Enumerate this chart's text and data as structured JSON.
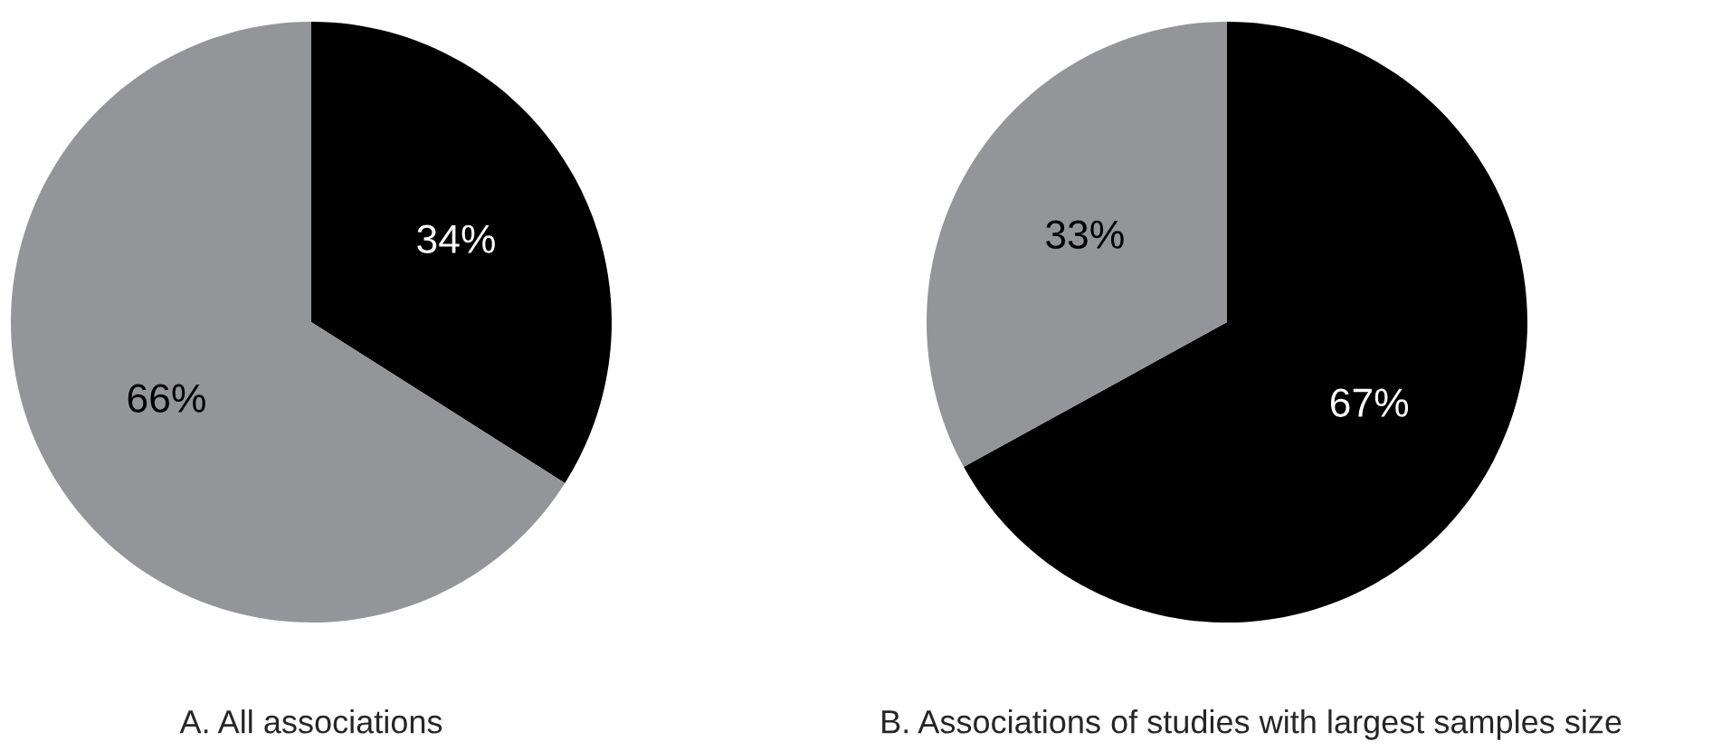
{
  "chart_data": [
    {
      "type": "pie",
      "title": "A. All associations",
      "categories": [
        null,
        null
      ],
      "values": [
        34,
        66
      ],
      "colors": [
        "#000000",
        "#939598"
      ],
      "value_labels": [
        "34%",
        "66%"
      ]
    },
    {
      "type": "pie",
      "title": "B. Associations of studies with largest samples size",
      "categories": [
        null,
        null
      ],
      "values": [
        67,
        33
      ],
      "colors": [
        "#000000",
        "#939598"
      ],
      "value_labels": [
        "67%",
        "33%"
      ]
    }
  ]
}
